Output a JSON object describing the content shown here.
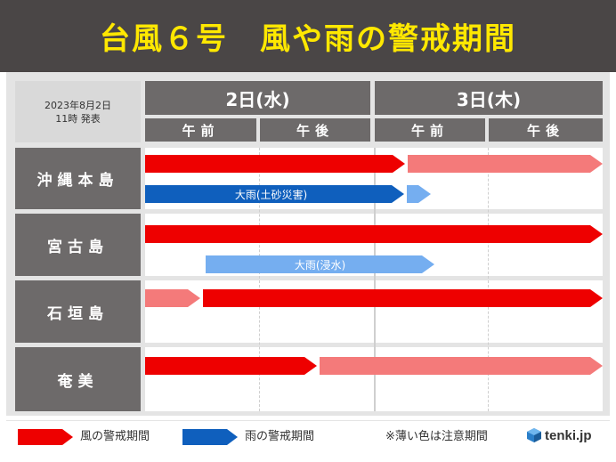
{
  "title": "台風６号　風や雨の警戒期間",
  "issued": {
    "date": "2023年8月2日",
    "time": "11時 発表"
  },
  "days": [
    {
      "label": "2日(水)"
    },
    {
      "label": "3日(木)"
    }
  ],
  "periods": [
    "午前",
    "午後",
    "午前",
    "午後"
  ],
  "regions": [
    {
      "name": "沖縄本島"
    },
    {
      "name": "宮古島"
    },
    {
      "name": "石垣島"
    },
    {
      "name": "奄美"
    }
  ],
  "bars": {
    "okinawa_rain_label": "大雨(土砂災害)",
    "miyako_rain_label": "大雨(浸水)"
  },
  "legend": {
    "wind": "風の警戒期間",
    "rain": "雨の警戒期間",
    "note": "※薄い色は注意期間"
  },
  "logo": {
    "text": "tenki.jp",
    "icon": "tenki-logo-icon"
  },
  "colors": {
    "wind_warning": "#ee0000",
    "wind_caution": "#f47a7a",
    "rain_warning": "#0f5fbd",
    "rain_caution": "#75aef0",
    "title": "#ffe800",
    "header_bg": "#4a4646"
  }
}
